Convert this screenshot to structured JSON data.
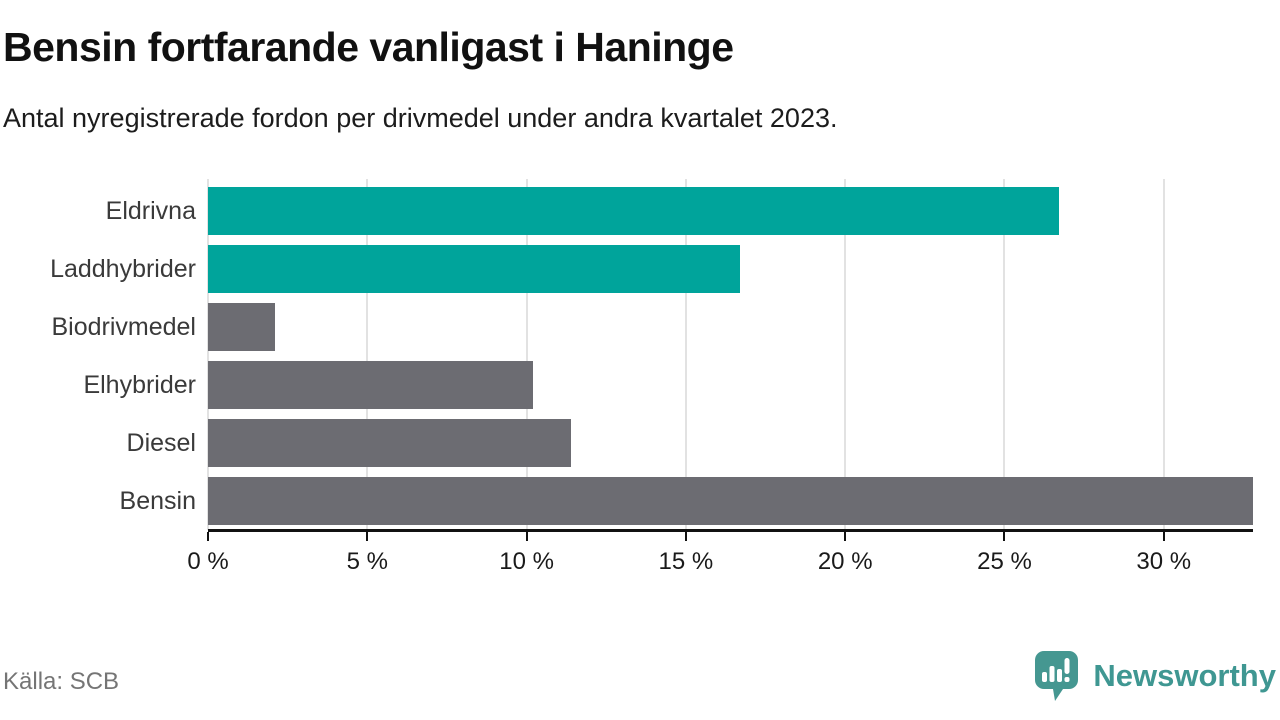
{
  "header": {
    "title": "Bensin fortfarande vanligast i Haninge",
    "subtitle": "Antal nyregistrerade fordon per drivmedel under andra kvartalet 2023."
  },
  "footer": {
    "source": "Källa: SCB",
    "brand_name": "Newsworthy"
  },
  "colors": {
    "highlight_bar": "#00A49B",
    "default_bar": "#6C6C72",
    "gridline": "#E2E2E2",
    "axis": "#111111",
    "brand_teal": "#459791"
  },
  "chart_data": {
    "type": "bar",
    "orientation": "horizontal",
    "title": "Bensin fortfarande vanligast i Haninge",
    "subtitle": "Antal nyregistrerade fordon per drivmedel under andra kvartalet 2023.",
    "source": "Källa: SCB",
    "categories": [
      "Eldrivna",
      "Laddhybrider",
      "Biodrivmedel",
      "Elhybrider",
      "Diesel",
      "Bensin"
    ],
    "values": [
      26.7,
      16.7,
      2.1,
      10.2,
      11.4,
      32.8
    ],
    "unit": "%",
    "bar_colors": [
      "#00A49B",
      "#00A49B",
      "#6C6C72",
      "#6C6C72",
      "#6C6C72",
      "#6C6C72"
    ],
    "xlim": [
      0,
      32.8
    ],
    "xticks": [
      0,
      5,
      10,
      15,
      20,
      25,
      30
    ],
    "xtick_labels": [
      "0 %",
      "5 %",
      "10 %",
      "15 %",
      "20 %",
      "25 %",
      "30 %"
    ],
    "grid": true,
    "legend": "none"
  }
}
